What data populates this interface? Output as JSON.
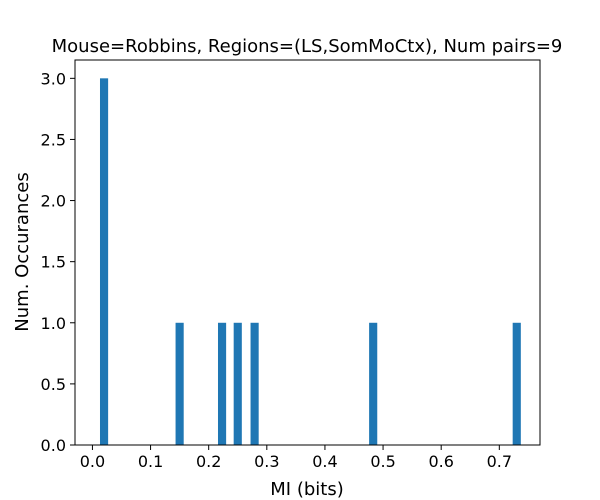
{
  "chart_data": {
    "type": "bar",
    "title": "Mouse=Robbins, Regions=(LS,SomMoCtx), Num pairs=9",
    "xlabel": "MI (bits)",
    "ylabel": "Num. Occurances",
    "xlim": [
      -0.03,
      0.77
    ],
    "ylim": [
      0,
      3.15
    ],
    "xticks": [
      "0.0",
      "0.1",
      "0.2",
      "0.3",
      "0.4",
      "0.5",
      "0.6",
      "0.7"
    ],
    "xtick_values": [
      0.0,
      0.1,
      0.2,
      0.3,
      0.4,
      0.5,
      0.6,
      0.7
    ],
    "yticks": [
      "0.0",
      "0.5",
      "1.0",
      "1.5",
      "2.0",
      "2.5",
      "3.0"
    ],
    "ytick_values": [
      0.0,
      0.5,
      1.0,
      1.5,
      2.0,
      2.5,
      3.0
    ],
    "bar_width": 0.014,
    "bars": [
      {
        "x": 0.02,
        "value": 3
      },
      {
        "x": 0.15,
        "value": 1
      },
      {
        "x": 0.223,
        "value": 1
      },
      {
        "x": 0.25,
        "value": 1
      },
      {
        "x": 0.279,
        "value": 1
      },
      {
        "x": 0.483,
        "value": 1
      },
      {
        "x": 0.73,
        "value": 1
      }
    ],
    "grid": false,
    "bar_color": "#1f77b4"
  }
}
